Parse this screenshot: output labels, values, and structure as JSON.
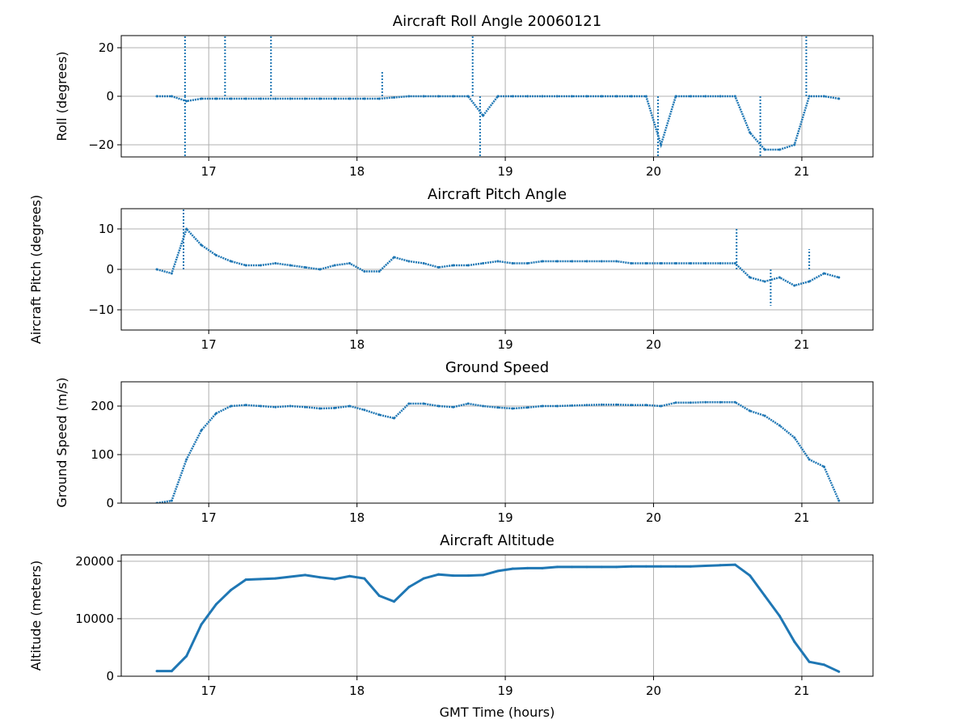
{
  "chart_data": [
    {
      "type": "scatter",
      "title": "Aircraft Roll Angle 20060121",
      "xlabel": "",
      "ylabel": "Roll (degrees)",
      "xlim": [
        16.41,
        21.48
      ],
      "ylim": [
        -25,
        25
      ],
      "xticks": [
        17,
        18,
        19,
        20,
        21
      ],
      "yticks": [
        -20,
        0,
        20
      ],
      "grid": true,
      "color": "#1f77b4",
      "x": [
        16.65,
        16.75,
        16.85,
        16.95,
        17.05,
        17.15,
        17.25,
        17.35,
        17.45,
        17.55,
        17.65,
        17.75,
        17.85,
        17.95,
        18.05,
        18.15,
        18.25,
        18.35,
        18.45,
        18.55,
        18.65,
        18.75,
        18.85,
        18.95,
        19.05,
        19.15,
        19.25,
        19.35,
        19.45,
        19.55,
        19.65,
        19.75,
        19.85,
        19.95,
        20.05,
        20.15,
        20.25,
        20.35,
        20.45,
        20.55,
        20.65,
        20.75,
        20.85,
        20.95,
        21.05,
        21.15,
        21.25
      ],
      "values": [
        0,
        0,
        -2,
        -1,
        -1,
        -1,
        -1,
        -1,
        -1,
        -1,
        -1,
        -1,
        -1,
        -1,
        -1,
        -1,
        -0.5,
        0,
        0,
        0,
        0,
        0,
        -8,
        0,
        0,
        0,
        0,
        0,
        0,
        0,
        0,
        0,
        0,
        0,
        -20,
        0,
        0,
        0,
        0,
        0,
        -15,
        -22,
        -22,
        -20,
        0,
        0,
        -1
      ],
      "spikes": [
        [
          16.84,
          25
        ],
        [
          16.84,
          -25
        ],
        [
          17.11,
          25
        ],
        [
          17.42,
          25
        ],
        [
          18.17,
          10
        ],
        [
          18.78,
          25
        ],
        [
          18.83,
          -25
        ],
        [
          20.03,
          -25
        ],
        [
          20.72,
          -25
        ],
        [
          21.03,
          25
        ]
      ]
    },
    {
      "type": "scatter",
      "title": "Aircraft Pitch Angle",
      "xlabel": "",
      "ylabel": "Aircraft Pitch (degrees)",
      "xlim": [
        16.41,
        21.48
      ],
      "ylim": [
        -15,
        15
      ],
      "xticks": [
        17,
        18,
        19,
        20,
        21
      ],
      "yticks": [
        -10,
        0,
        10
      ],
      "grid": true,
      "color": "#1f77b4",
      "x": [
        16.65,
        16.75,
        16.85,
        16.95,
        17.05,
        17.15,
        17.25,
        17.35,
        17.45,
        17.55,
        17.65,
        17.75,
        17.85,
        17.95,
        18.05,
        18.15,
        18.25,
        18.35,
        18.45,
        18.55,
        18.65,
        18.75,
        18.85,
        18.95,
        19.05,
        19.15,
        19.25,
        19.35,
        19.45,
        19.55,
        19.65,
        19.75,
        19.85,
        19.95,
        20.05,
        20.15,
        20.25,
        20.35,
        20.45,
        20.55,
        20.65,
        20.75,
        20.85,
        20.95,
        21.05,
        21.15,
        21.25
      ],
      "values": [
        0,
        -1,
        10,
        6,
        3.5,
        2,
        1,
        1,
        1.5,
        1,
        0.5,
        0,
        1,
        1.5,
        -0.5,
        -0.5,
        3,
        2,
        1.5,
        0.5,
        1,
        1,
        1.5,
        2,
        1.5,
        1.5,
        2,
        2,
        2,
        2,
        2,
        2,
        1.5,
        1.5,
        1.5,
        1.5,
        1.5,
        1.5,
        1.5,
        1.5,
        -2,
        -3,
        -2,
        -4,
        -3,
        -1,
        -2
      ],
      "spikes": [
        [
          16.83,
          15
        ],
        [
          20.56,
          10
        ],
        [
          20.79,
          -9
        ],
        [
          21.05,
          5
        ]
      ]
    },
    {
      "type": "scatter",
      "title": "Ground Speed",
      "xlabel": "",
      "ylabel": "Ground Speed (m/s)",
      "xlim": [
        16.41,
        21.48
      ],
      "ylim": [
        0,
        250
      ],
      "xticks": [
        17,
        18,
        19,
        20,
        21
      ],
      "yticks": [
        0,
        100,
        200
      ],
      "grid": true,
      "color": "#1f77b4",
      "x": [
        16.65,
        16.75,
        16.85,
        16.95,
        17.05,
        17.15,
        17.25,
        17.35,
        17.45,
        17.55,
        17.65,
        17.75,
        17.85,
        17.95,
        18.05,
        18.15,
        18.25,
        18.35,
        18.45,
        18.55,
        18.65,
        18.75,
        18.85,
        18.95,
        19.05,
        19.15,
        19.25,
        19.35,
        19.45,
        19.55,
        19.65,
        19.75,
        19.85,
        19.95,
        20.05,
        20.15,
        20.25,
        20.35,
        20.45,
        20.55,
        20.65,
        20.75,
        20.85,
        20.95,
        21.05,
        21.15,
        21.25
      ],
      "values": [
        0,
        5,
        90,
        150,
        185,
        200,
        202,
        200,
        198,
        200,
        198,
        195,
        196,
        200,
        192,
        182,
        175,
        205,
        205,
        200,
        198,
        205,
        200,
        197,
        195,
        197,
        200,
        200,
        201,
        202,
        203,
        203,
        202,
        202,
        200,
        207,
        207,
        208,
        208,
        208,
        190,
        180,
        160,
        135,
        90,
        75,
        5
      ],
      "spikes": []
    },
    {
      "type": "line",
      "title": "Aircraft Altitude",
      "xlabel": "GMT Time (hours)",
      "ylabel": "Altitude (meters)",
      "xlim": [
        16.41,
        21.48
      ],
      "ylim": [
        0,
        21100
      ],
      "xticks": [
        17,
        18,
        19,
        20,
        21
      ],
      "yticks": [
        0,
        10000,
        20000
      ],
      "grid": true,
      "color": "#1f77b4",
      "x": [
        16.65,
        16.75,
        16.85,
        16.95,
        17.05,
        17.15,
        17.25,
        17.35,
        17.45,
        17.55,
        17.65,
        17.75,
        17.85,
        17.95,
        18.05,
        18.15,
        18.25,
        18.35,
        18.45,
        18.55,
        18.65,
        18.75,
        18.85,
        18.95,
        19.05,
        19.15,
        19.25,
        19.35,
        19.45,
        19.55,
        19.65,
        19.75,
        19.85,
        19.95,
        20.05,
        20.15,
        20.25,
        20.35,
        20.45,
        20.55,
        20.65,
        20.75,
        20.85,
        20.95,
        21.05,
        21.15,
        21.25
      ],
      "values": [
        900,
        900,
        3500,
        9000,
        12500,
        15000,
        16800,
        16900,
        17000,
        17300,
        17600,
        17200,
        16900,
        17400,
        17000,
        14000,
        13000,
        15500,
        17000,
        17700,
        17500,
        17500,
        17600,
        18300,
        18700,
        18800,
        18800,
        19000,
        19000,
        19000,
        19000,
        19000,
        19100,
        19100,
        19100,
        19100,
        19100,
        19200,
        19300,
        19400,
        17500,
        14000,
        10500,
        6000,
        2500,
        2000,
        800
      ],
      "spikes": []
    }
  ]
}
